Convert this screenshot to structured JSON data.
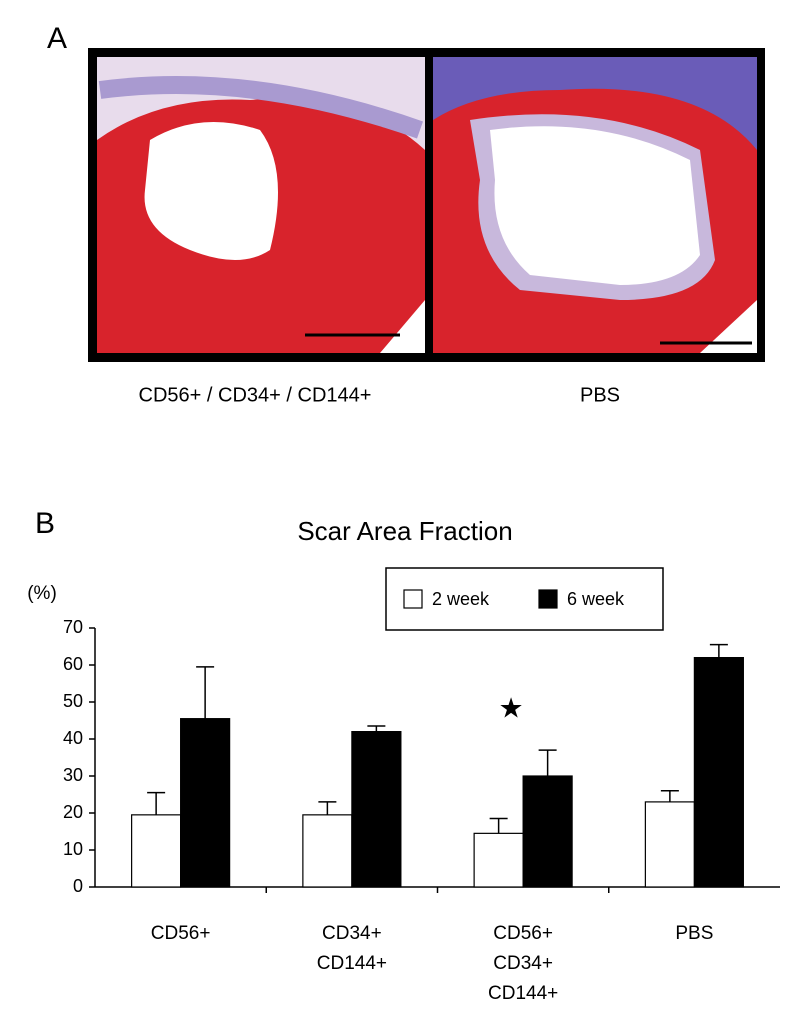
{
  "panels": {
    "a_label": "A",
    "b_label": "B",
    "captions": [
      "CD56+ / CD34+ / CD144+",
      "PBS"
    ]
  },
  "chart_data": {
    "type": "bar",
    "title": "Scar Area Fraction",
    "y_label": "(%)",
    "annotation": "★",
    "categories": [
      [
        "CD56+"
      ],
      [
        "CD34+",
        "CD144+"
      ],
      [
        "CD56+",
        "CD34+",
        "CD144+"
      ],
      [
        "PBS"
      ]
    ],
    "series": [
      {
        "name": "2 week",
        "color": "#ffffff",
        "values": [
          19.5,
          19.5,
          14.5,
          23
        ],
        "errors": [
          6,
          3.5,
          4,
          3
        ]
      },
      {
        "name": "6 week",
        "color": "#000000",
        "values": [
          45.5,
          42,
          30,
          62
        ],
        "errors": [
          14,
          1.5,
          7,
          3.5
        ]
      }
    ],
    "ylim": [
      0,
      70
    ],
    "yticks": [
      0,
      10,
      20,
      30,
      40,
      50,
      60,
      70
    ],
    "grid": false
  }
}
